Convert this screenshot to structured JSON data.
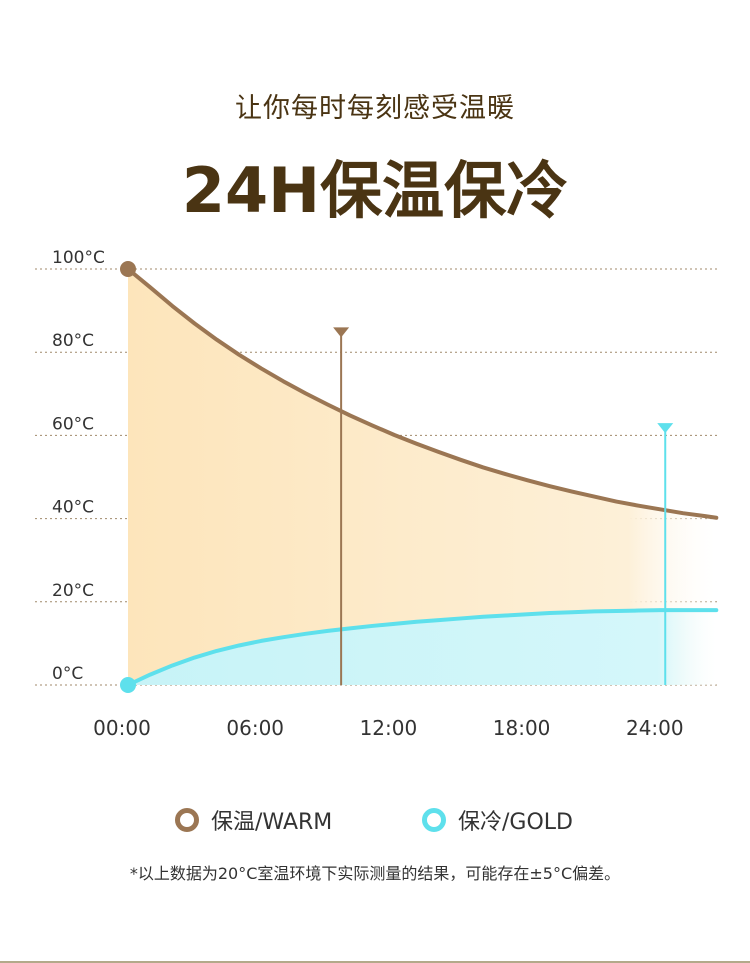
{
  "header": {
    "subtitle": "让你每时每刻感受温暖",
    "title": "24H保温保冷"
  },
  "legend": {
    "warm_label": "保温/WARM",
    "cold_label": "保冷/GOLD"
  },
  "note": "*以上数据为20°C室温环境下实际测量的结果，可能存在±5°C偏差。",
  "colors": {
    "warm": "#9b7653",
    "warm_fill": "#fdebc9",
    "cold": "#5ee0ec",
    "cold_fill": "#cdf6f9",
    "grid": "#a08a6b",
    "text_dark": "#4a3413"
  },
  "chart_data": {
    "type": "line",
    "ylim": [
      0,
      100
    ],
    "y_ticks": [
      0,
      20,
      40,
      60,
      80,
      100
    ],
    "y_tick_labels": [
      "0°C",
      "20°C",
      "40°C",
      "60°C",
      "80°C",
      "100°C"
    ],
    "x_ticks": [
      0,
      6,
      12,
      18,
      24
    ],
    "x_tick_labels": [
      "00:00",
      "06:00",
      "12:00",
      "18:00",
      "24:00"
    ],
    "xlim": [
      0,
      26.5
    ],
    "grid": "horizontal dotted",
    "legend_placement": "bottom-center",
    "series": [
      {
        "name": "保温/WARM",
        "x": [
          0,
          1,
          2,
          3,
          4,
          5,
          6,
          7,
          8,
          9,
          10,
          11,
          12,
          13,
          14,
          15,
          16,
          17,
          18,
          19,
          20,
          21,
          22,
          23,
          24,
          25,
          26,
          26.5
        ],
        "y": [
          100,
          95.6,
          91.1,
          86.9,
          83.0,
          79.4,
          76.1,
          73.0,
          70.1,
          67.4,
          64.8,
          62.4,
          60.1,
          58.0,
          56.0,
          54.1,
          52.3,
          50.7,
          49.2,
          47.8,
          46.5,
          45.3,
          44.1,
          43.1,
          42.2,
          41.3,
          40.6,
          40.2
        ]
      },
      {
        "name": "保冷/GOLD",
        "x": [
          0,
          1,
          2,
          3,
          4,
          5,
          6,
          7,
          8,
          9,
          10,
          11,
          12,
          13,
          14,
          15,
          16,
          17,
          18,
          19,
          20,
          21,
          22,
          23,
          24,
          25,
          26,
          26.5
        ],
        "y": [
          0,
          2.5,
          4.7,
          6.6,
          8.2,
          9.5,
          10.6,
          11.5,
          12.3,
          13.0,
          13.6,
          14.2,
          14.7,
          15.2,
          15.6,
          16.0,
          16.4,
          16.7,
          17.0,
          17.3,
          17.5,
          17.7,
          17.8,
          17.9,
          18.0,
          18.0,
          18.0,
          18.0
        ]
      }
    ],
    "markers": [
      {
        "series": "保温/WARM",
        "x": 9.6,
        "y_top": 85
      },
      {
        "series": "保冷/GOLD",
        "x": 24.2,
        "y_top": 62
      }
    ]
  }
}
